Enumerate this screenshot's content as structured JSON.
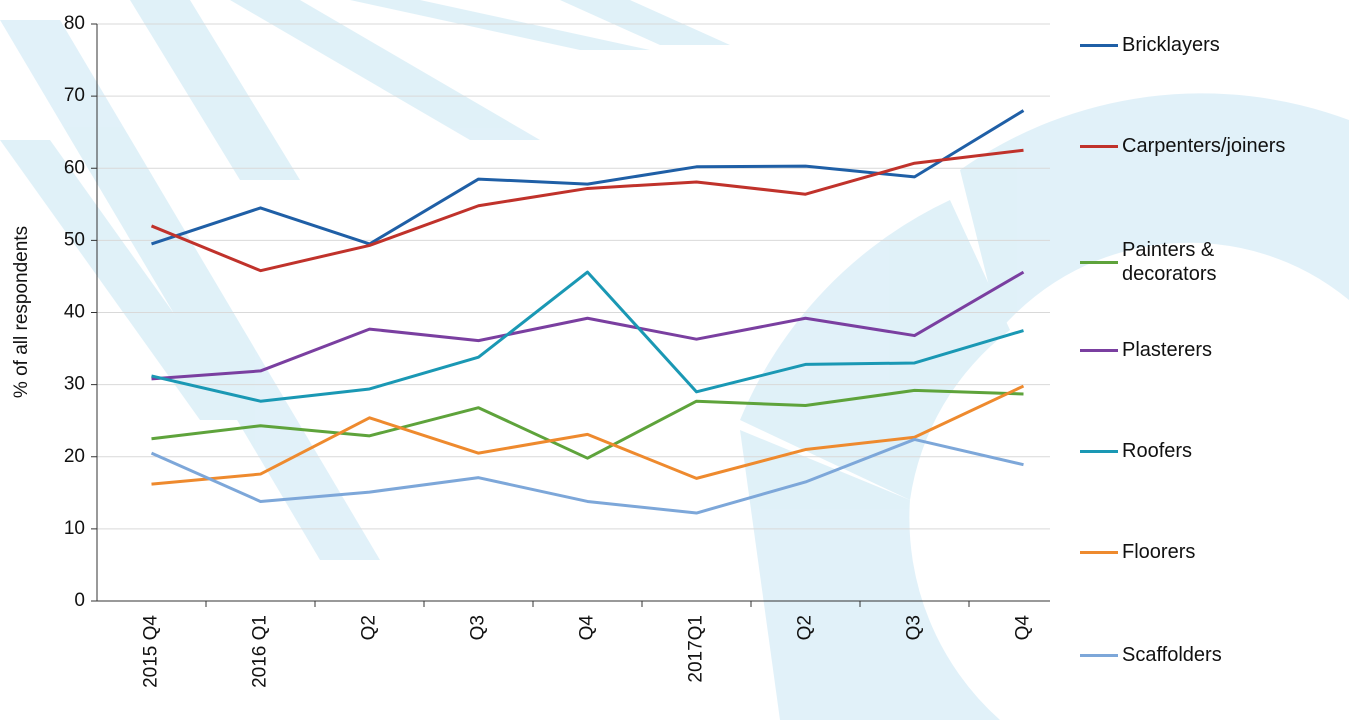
{
  "chart_data": {
    "type": "line",
    "y_label": "% of all respondents",
    "categories": [
      "2015 Q4",
      "2016 Q1",
      "Q2",
      "Q3",
      "Q4",
      "2017Q1",
      "Q2",
      "Q3",
      "Q4"
    ],
    "ylim": [
      0,
      80
    ],
    "yticks": [
      0,
      10,
      20,
      30,
      40,
      50,
      60,
      70,
      80
    ],
    "grid": true,
    "series": [
      {
        "name": "Bricklayers",
        "color": "#1f5fa6",
        "values": [
          49.5,
          54.5,
          49.5,
          58.5,
          57.8,
          60.2,
          60.3,
          58.8,
          68
        ]
      },
      {
        "name": "Carpenters/joiners",
        "color": "#c0322b",
        "values": [
          52,
          45.8,
          49.3,
          54.8,
          57.2,
          58.1,
          56.4,
          60.7,
          62.5
        ]
      },
      {
        "name": "Painters & decorators",
        "color": "#5ea33b",
        "values": [
          22.5,
          24.3,
          22.9,
          26.8,
          19.8,
          27.7,
          27.1,
          29.2,
          28.7
        ]
      },
      {
        "name": "Plasterers",
        "color": "#7a3fa0",
        "values": [
          30.8,
          31.9,
          37.7,
          36.1,
          39.2,
          36.3,
          39.2,
          36.8,
          45.6
        ]
      },
      {
        "name": "Roofers",
        "color": "#1a98b4",
        "values": [
          31.2,
          27.7,
          29.4,
          33.8,
          45.6,
          29,
          32.8,
          33,
          37.5
        ]
      },
      {
        "name": "Floorers",
        "color": "#ee8a2e",
        "values": [
          16.2,
          17.6,
          25.4,
          20.5,
          23.1,
          17,
          21,
          22.7,
          29.8
        ]
      },
      {
        "name": "Scaffolders",
        "color": "#7da7d9",
        "values": [
          20.5,
          13.8,
          15.1,
          17.1,
          13.8,
          12.2,
          16.5,
          22.4,
          18.9
        ]
      }
    ]
  }
}
